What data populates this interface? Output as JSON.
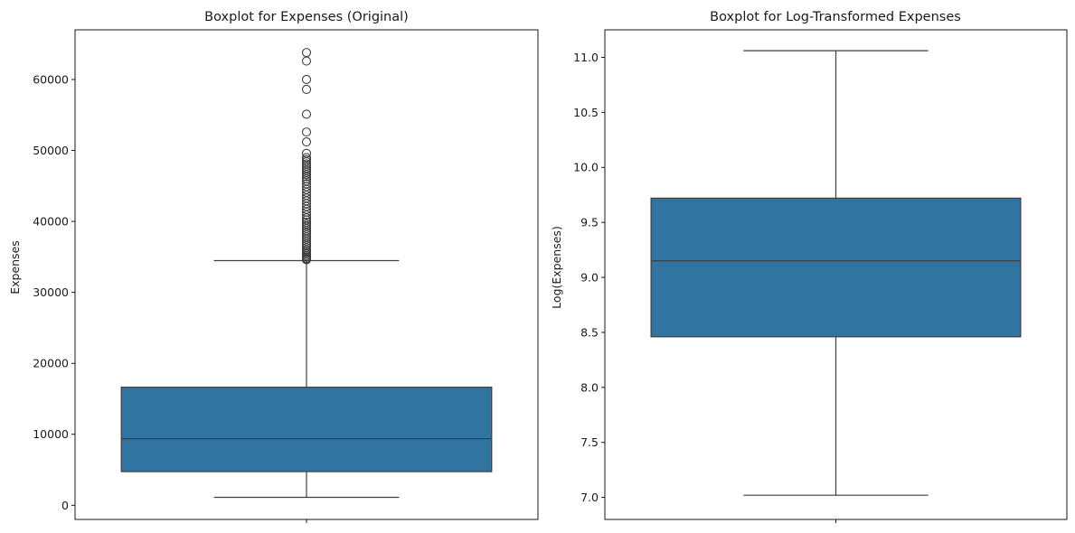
{
  "chart_data": [
    {
      "type": "boxplot",
      "title": "Boxplot for Expenses (Original)",
      "xlabel": "",
      "ylabel": "Expenses",
      "ylim": [
        -2000,
        67000
      ],
      "yticks": [
        0,
        10000,
        20000,
        30000,
        40000,
        50000,
        60000
      ],
      "ytick_labels": [
        "0",
        "10000",
        "20000",
        "30000",
        "40000",
        "50000",
        "60000"
      ],
      "box": {
        "whisker_low": 1121,
        "q1": 4740,
        "median": 9382,
        "q3": 16640,
        "whisker_high": 34470
      },
      "outliers": [
        34600,
        34700,
        34800,
        35000,
        35200,
        35400,
        35600,
        35800,
        36000,
        36300,
        36600,
        36900,
        37200,
        37500,
        37800,
        38100,
        38400,
        38700,
        39000,
        39300,
        39600,
        39900,
        40200,
        40500,
        40900,
        41300,
        41700,
        42100,
        42500,
        42900,
        43300,
        43700,
        44100,
        44500,
        44900,
        45300,
        45700,
        46000,
        46300,
        46600,
        46900,
        47200,
        47500,
        47800,
        48100,
        48400,
        48700,
        49000,
        49600,
        51200,
        52600,
        55100,
        58600,
        60000,
        62600,
        63800
      ],
      "grid": false,
      "color": "#3274a1"
    },
    {
      "type": "boxplot",
      "title": "Boxplot for Log-Transformed Expenses",
      "xlabel": "",
      "ylabel": "Log(Expenses)",
      "ylim": [
        6.8,
        11.25
      ],
      "yticks": [
        7.0,
        7.5,
        8.0,
        8.5,
        9.0,
        9.5,
        10.0,
        10.5,
        11.0
      ],
      "ytick_labels": [
        "7.0",
        "7.5",
        "8.0",
        "8.5",
        "9.0",
        "9.5",
        "10.0",
        "10.5",
        "11.0"
      ],
      "box": {
        "whisker_low": 7.02,
        "q1": 8.46,
        "median": 9.15,
        "q3": 9.72,
        "whisker_high": 11.06
      },
      "outliers": [],
      "grid": false,
      "color": "#3274a1"
    }
  ]
}
